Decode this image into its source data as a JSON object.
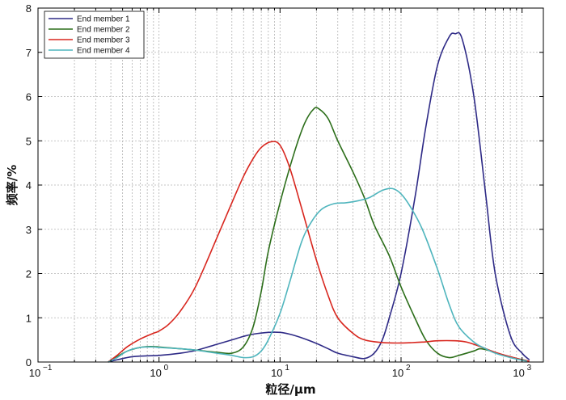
{
  "chart_data": {
    "type": "line",
    "title": "",
    "xlabel": "粒径/μm",
    "ylabel": "频率/%",
    "xscale": "log",
    "xlim": [
      0.1,
      1500
    ],
    "ylim": [
      0,
      8
    ],
    "grid": true,
    "legend_position": "top-left",
    "x_ticks": [
      {
        "base": "10",
        "exp": "−1",
        "value": 0.1
      },
      {
        "base": "10",
        "exp": "0",
        "value": 1
      },
      {
        "base": "10",
        "exp": "1",
        "value": 10
      },
      {
        "base": "10",
        "exp": "2",
        "value": 100
      },
      {
        "base": "10",
        "exp": "3",
        "value": 1000
      }
    ],
    "y_ticks": [
      "0",
      "1",
      "2",
      "3",
      "4",
      "5",
      "6",
      "7",
      "8"
    ],
    "series": [
      {
        "name": "End member 1",
        "color": "#2e2a86",
        "points": [
          [
            0.38,
            0
          ],
          [
            0.45,
            0.05
          ],
          [
            0.6,
            0.12
          ],
          [
            0.8,
            0.14
          ],
          [
            1.0,
            0.15
          ],
          [
            1.5,
            0.2
          ],
          [
            2,
            0.26
          ],
          [
            3,
            0.4
          ],
          [
            4,
            0.5
          ],
          [
            5,
            0.58
          ],
          [
            6,
            0.63
          ],
          [
            8,
            0.67
          ],
          [
            10,
            0.67
          ],
          [
            12,
            0.63
          ],
          [
            15,
            0.55
          ],
          [
            20,
            0.42
          ],
          [
            25,
            0.3
          ],
          [
            30,
            0.2
          ],
          [
            40,
            0.12
          ],
          [
            50,
            0.08
          ],
          [
            60,
            0.2
          ],
          [
            70,
            0.5
          ],
          [
            80,
            1.0
          ],
          [
            100,
            2.0
          ],
          [
            130,
            3.7
          ],
          [
            160,
            5.3
          ],
          [
            200,
            6.7
          ],
          [
            250,
            7.35
          ],
          [
            280,
            7.42
          ],
          [
            320,
            7.3
          ],
          [
            400,
            6.0
          ],
          [
            500,
            3.8
          ],
          [
            600,
            2.0
          ],
          [
            800,
            0.6
          ],
          [
            1000,
            0.2
          ],
          [
            1150,
            0.05
          ]
        ]
      },
      {
        "name": "End member 2",
        "color": "#2c6e1a",
        "points": [
          [
            0.38,
            0
          ],
          [
            0.45,
            0.12
          ],
          [
            0.55,
            0.25
          ],
          [
            0.7,
            0.33
          ],
          [
            0.85,
            0.35
          ],
          [
            1.0,
            0.34
          ],
          [
            1.5,
            0.3
          ],
          [
            2,
            0.27
          ],
          [
            3,
            0.22
          ],
          [
            4,
            0.2
          ],
          [
            5,
            0.35
          ],
          [
            6,
            0.8
          ],
          [
            7,
            1.6
          ],
          [
            8,
            2.5
          ],
          [
            10,
            3.6
          ],
          [
            13,
            4.7
          ],
          [
            16,
            5.4
          ],
          [
            19,
            5.72
          ],
          [
            21,
            5.72
          ],
          [
            25,
            5.5
          ],
          [
            30,
            5.0
          ],
          [
            40,
            4.3
          ],
          [
            50,
            3.7
          ],
          [
            60,
            3.1
          ],
          [
            80,
            2.4
          ],
          [
            100,
            1.7
          ],
          [
            130,
            1.0
          ],
          [
            160,
            0.5
          ],
          [
            200,
            0.2
          ],
          [
            250,
            0.1
          ],
          [
            300,
            0.15
          ],
          [
            400,
            0.25
          ],
          [
            450,
            0.3
          ],
          [
            550,
            0.25
          ],
          [
            700,
            0.15
          ],
          [
            900,
            0.08
          ],
          [
            1100,
            0.03
          ]
        ]
      },
      {
        "name": "End member 3",
        "color": "#d8261e",
        "points": [
          [
            0.38,
            0
          ],
          [
            0.45,
            0.15
          ],
          [
            0.55,
            0.35
          ],
          [
            0.7,
            0.52
          ],
          [
            0.9,
            0.65
          ],
          [
            1.0,
            0.7
          ],
          [
            1.2,
            0.85
          ],
          [
            1.5,
            1.15
          ],
          [
            2,
            1.7
          ],
          [
            3,
            2.8
          ],
          [
            4,
            3.6
          ],
          [
            5,
            4.2
          ],
          [
            6,
            4.6
          ],
          [
            7,
            4.85
          ],
          [
            8.5,
            4.98
          ],
          [
            10,
            4.9
          ],
          [
            12,
            4.4
          ],
          [
            15,
            3.5
          ],
          [
            20,
            2.3
          ],
          [
            25,
            1.5
          ],
          [
            30,
            1.0
          ],
          [
            40,
            0.65
          ],
          [
            50,
            0.5
          ],
          [
            70,
            0.44
          ],
          [
            100,
            0.43
          ],
          [
            150,
            0.45
          ],
          [
            200,
            0.48
          ],
          [
            280,
            0.48
          ],
          [
            350,
            0.45
          ],
          [
            450,
            0.35
          ],
          [
            600,
            0.22
          ],
          [
            800,
            0.12
          ],
          [
            1000,
            0.05
          ],
          [
            1150,
            0.02
          ]
        ]
      },
      {
        "name": "End member 4",
        "color": "#4fb5bd",
        "points": [
          [
            0.38,
            0
          ],
          [
            0.45,
            0.1
          ],
          [
            0.55,
            0.25
          ],
          [
            0.7,
            0.33
          ],
          [
            0.9,
            0.34
          ],
          [
            1.0,
            0.33
          ],
          [
            1.5,
            0.3
          ],
          [
            2,
            0.27
          ],
          [
            3,
            0.2
          ],
          [
            4,
            0.15
          ],
          [
            5,
            0.1
          ],
          [
            6,
            0.12
          ],
          [
            7,
            0.25
          ],
          [
            8,
            0.5
          ],
          [
            10,
            1.1
          ],
          [
            12,
            1.8
          ],
          [
            15,
            2.7
          ],
          [
            18,
            3.15
          ],
          [
            22,
            3.45
          ],
          [
            28,
            3.58
          ],
          [
            35,
            3.6
          ],
          [
            45,
            3.65
          ],
          [
            55,
            3.72
          ],
          [
            70,
            3.88
          ],
          [
            85,
            3.92
          ],
          [
            100,
            3.8
          ],
          [
            120,
            3.5
          ],
          [
            150,
            3.0
          ],
          [
            200,
            2.1
          ],
          [
            250,
            1.3
          ],
          [
            300,
            0.8
          ],
          [
            400,
            0.45
          ],
          [
            500,
            0.3
          ],
          [
            600,
            0.2
          ],
          [
            800,
            0.1
          ],
          [
            1000,
            0.04
          ],
          [
            1100,
            0.02
          ]
        ]
      }
    ]
  }
}
